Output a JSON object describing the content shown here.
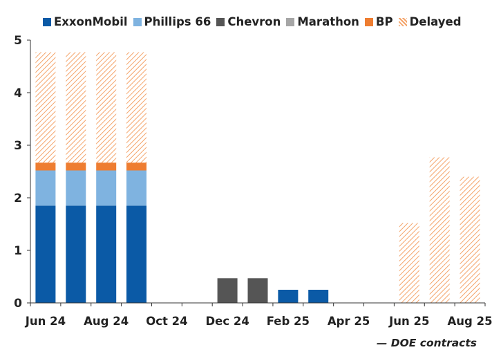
{
  "chart_data": {
    "type": "bar",
    "stacked": true,
    "x_tick_labels": [
      "Jun 24",
      "Aug 24",
      "Oct 24",
      "Dec 24",
      "Feb 25",
      "Apr 25",
      "Jun 25",
      "Aug 25"
    ],
    "categories": [
      "Jun 24",
      "Jul 24",
      "Aug 24",
      "Sep 24",
      "Oct 24",
      "Nov 24",
      "Dec 24",
      "Jan 25",
      "Feb 25",
      "Mar 25",
      "Apr 25",
      "May 25",
      "Jun 25",
      "Jul 25",
      "Aug 25"
    ],
    "series": [
      {
        "name": "ExxonMobil",
        "color": "#0b5aa6",
        "pattern": "solid",
        "values": [
          1.85,
          1.85,
          1.85,
          1.85,
          0,
          0,
          0,
          0,
          0.25,
          0.25,
          0,
          0,
          0,
          0,
          0
        ]
      },
      {
        "name": "Phillips 66",
        "color": "#7fb3e0",
        "pattern": "solid",
        "values": [
          0.67,
          0.67,
          0.67,
          0.67,
          0,
          0,
          0,
          0,
          0,
          0,
          0,
          0,
          0,
          0,
          0
        ]
      },
      {
        "name": "Chevron",
        "color": "#555555",
        "pattern": "solid",
        "values": [
          0,
          0,
          0,
          0,
          0,
          0,
          0.47,
          0.47,
          0,
          0,
          0,
          0,
          0,
          0,
          0
        ]
      },
      {
        "name": "Marathon",
        "color": "#a6a6a6",
        "pattern": "solid",
        "values": [
          0,
          0,
          0,
          0,
          0,
          0,
          0,
          0,
          0,
          0,
          0,
          0,
          0,
          0,
          0
        ]
      },
      {
        "name": "BP",
        "color": "#ee7d31",
        "pattern": "solid",
        "values": [
          0.15,
          0.15,
          0.15,
          0.15,
          0,
          0,
          0,
          0,
          0,
          0,
          0,
          0,
          0,
          0,
          0
        ]
      },
      {
        "name": "Delayed",
        "color": "#f4a46a",
        "pattern": "hatched",
        "values": [
          2.1,
          2.1,
          2.1,
          2.1,
          0,
          0,
          0,
          0,
          0,
          0,
          0,
          0,
          1.52,
          2.77,
          2.4
        ]
      }
    ],
    "ylim": [
      0,
      5
    ],
    "yticks": [
      0,
      1,
      2,
      3,
      4,
      5
    ],
    "grid": false,
    "legend": "top",
    "annotation": "— DOE contracts",
    "title": "",
    "xlabel": "",
    "ylabel": ""
  }
}
